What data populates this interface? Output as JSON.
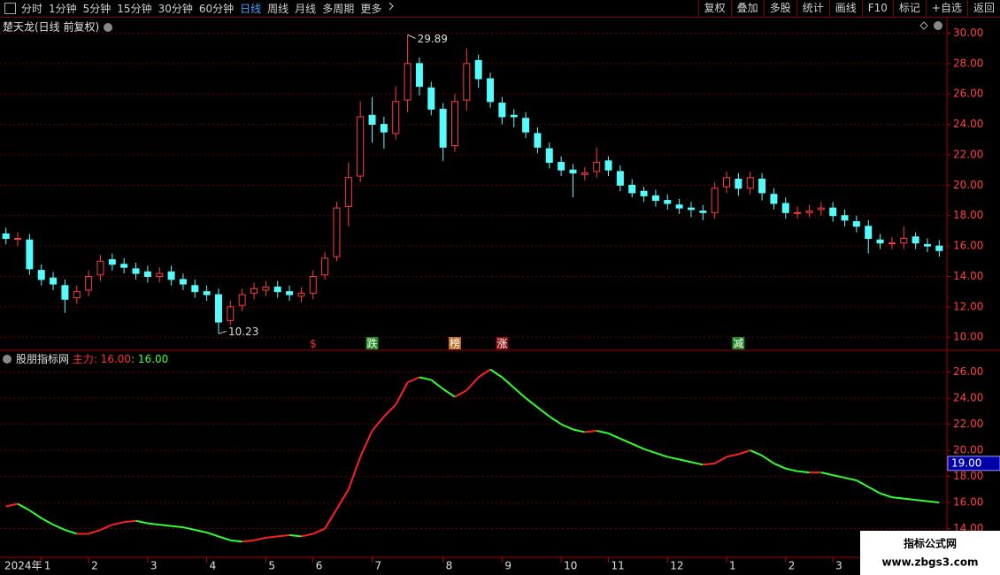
{
  "toolbar": {
    "periods": [
      "分时",
      "1分钟",
      "5分钟",
      "15分钟",
      "30分钟",
      "60分钟",
      "日线",
      "周线",
      "月线",
      "多周期",
      "更多"
    ],
    "active": "日线",
    "buttons": [
      "复权",
      "叠加",
      "多股",
      "统计",
      "画线",
      "F10",
      "标记",
      "+自选",
      "返回"
    ]
  },
  "watermark": {
    "title": "指标公式网",
    "url": "www.zbgs3.com"
  },
  "chart_data": [
    {
      "type": "candlestick",
      "title": "楚天龙(日线 前复权)",
      "up_color": "#ff3c3c",
      "down_color": "#54fcfc",
      "grid": true,
      "ylim": [
        9.2,
        30.9
      ],
      "yticks": [
        {
          "value": 10,
          "label": "10.00"
        },
        {
          "value": 12,
          "label": "12.00"
        },
        {
          "value": 14,
          "label": "14.00"
        },
        {
          "value": 16,
          "label": "16.00"
        },
        {
          "value": 18,
          "label": "18.00"
        },
        {
          "value": 20,
          "label": "20.00"
        },
        {
          "value": 22,
          "label": "22.00"
        },
        {
          "value": 24,
          "label": "24.00"
        },
        {
          "value": 26,
          "label": "26.00"
        },
        {
          "value": 28,
          "label": "28.00"
        },
        {
          "value": 30,
          "label": "30.00"
        }
      ],
      "open": [
        16.8,
        16.5,
        16.4,
        14.4,
        13.9,
        13.4,
        12.6,
        13.1,
        14.1,
        15.1,
        14.8,
        14.5,
        14.3,
        14.0,
        14.3,
        13.8,
        13.4,
        13.0,
        12.8,
        11.1,
        12.1,
        12.9,
        13.1,
        13.3,
        13.0,
        12.7,
        12.9,
        14.1,
        15.3,
        18.6,
        20.6,
        24.6,
        24.0,
        23.4,
        25.6,
        28.0,
        26.4,
        25.0,
        22.6,
        25.6,
        28.2,
        27.0,
        25.4,
        24.6,
        24.4,
        23.4,
        22.4,
        21.5,
        21.0,
        20.7,
        20.9,
        21.6,
        20.9,
        20.0,
        19.6,
        19.3,
        19.0,
        18.7,
        18.5,
        18.3,
        18.2,
        19.9,
        20.4,
        19.8,
        20.4,
        19.4,
        18.8,
        18.2,
        18.2,
        18.4,
        18.5,
        18.0,
        17.6,
        17.3,
        16.4,
        16.2,
        16.2,
        16.6,
        16.1,
        16.0
      ],
      "close": [
        16.5,
        16.5,
        14.5,
        13.8,
        13.5,
        12.5,
        13.0,
        14.0,
        15.0,
        14.8,
        14.6,
        14.2,
        14.0,
        14.2,
        13.8,
        13.5,
        13.0,
        12.8,
        11.0,
        12.0,
        12.8,
        13.2,
        13.3,
        13.0,
        12.8,
        12.9,
        14.0,
        15.2,
        18.5,
        20.5,
        24.5,
        24.0,
        23.5,
        25.5,
        28.0,
        26.5,
        25.0,
        22.5,
        25.5,
        28.0,
        27.0,
        25.5,
        24.5,
        24.5,
        23.5,
        22.5,
        21.5,
        21.0,
        20.8,
        20.8,
        21.5,
        21.0,
        20.0,
        19.5,
        19.3,
        19.0,
        18.8,
        18.5,
        18.4,
        18.2,
        19.8,
        20.5,
        19.8,
        20.5,
        19.5,
        18.8,
        18.2,
        18.2,
        18.3,
        18.5,
        18.0,
        17.7,
        17.3,
        16.5,
        16.2,
        16.2,
        16.5,
        16.2,
        16.0,
        15.7
      ],
      "high": [
        17.2,
        16.9,
        16.8,
        14.8,
        14.3,
        13.8,
        13.4,
        14.4,
        15.4,
        15.5,
        15.2,
        14.9,
        14.7,
        14.6,
        14.7,
        14.2,
        13.8,
        13.4,
        13.2,
        12.4,
        13.2,
        13.6,
        13.7,
        13.7,
        13.4,
        13.3,
        14.4,
        15.6,
        18.9,
        21.5,
        25.5,
        25.8,
        24.5,
        26.5,
        29.89,
        28.4,
        26.8,
        25.4,
        26.0,
        29.0,
        28.6,
        27.4,
        25.8,
        25.0,
        24.8,
        23.8,
        22.8,
        21.9,
        21.4,
        21.2,
        22.5,
        21.9,
        21.3,
        20.4,
        19.9,
        19.7,
        19.4,
        19.1,
        18.9,
        18.7,
        20.2,
        20.9,
        20.8,
        20.9,
        20.8,
        19.8,
        19.2,
        18.6,
        18.7,
        18.9,
        18.9,
        18.4,
        18.0,
        17.7,
        16.8,
        16.6,
        17.3,
        16.9,
        16.5,
        16.4
      ],
      "low": [
        16.1,
        16.0,
        14.1,
        13.4,
        13.1,
        11.6,
        12.2,
        12.7,
        13.7,
        14.4,
        14.2,
        13.8,
        13.6,
        13.6,
        13.4,
        13.1,
        12.6,
        12.4,
        10.23,
        10.8,
        11.7,
        12.5,
        12.7,
        12.6,
        12.4,
        12.3,
        12.5,
        13.8,
        15.0,
        17.3,
        20.2,
        22.8,
        22.4,
        23.0,
        24.8,
        25.9,
        24.6,
        21.6,
        22.2,
        24.9,
        26.4,
        25.1,
        24.0,
        23.8,
        23.1,
        22.1,
        21.1,
        20.6,
        19.2,
        20.3,
        20.5,
        20.6,
        19.6,
        19.2,
        18.9,
        18.6,
        18.4,
        18.1,
        17.9,
        17.7,
        17.8,
        19.5,
        19.3,
        19.4,
        19.0,
        18.4,
        17.8,
        17.8,
        17.9,
        18.0,
        17.6,
        17.3,
        16.9,
        15.5,
        15.8,
        15.8,
        15.8,
        15.8,
        15.6,
        15.3
      ],
      "signals": [
        null,
        null,
        null,
        null,
        null,
        null,
        null,
        null,
        null,
        null,
        null,
        null,
        null,
        null,
        null,
        null,
        null,
        null,
        null,
        null,
        null,
        null,
        null,
        null,
        null,
        null,
        {
          "label": "$",
          "color": "#ff3030",
          "background": "#000000"
        },
        null,
        null,
        null,
        null,
        {
          "label": "跌",
          "color": "#ffffff",
          "background": "#1f8a1f"
        },
        null,
        null,
        null,
        null,
        null,
        null,
        {
          "label": "榜",
          "color": "#ffffff",
          "background": "#c07020"
        },
        null,
        null,
        null,
        {
          "label": "涨",
          "color": "#ffffff",
          "background": "#8a1010"
        },
        null,
        null,
        null,
        null,
        null,
        null,
        null,
        null,
        null,
        null,
        null,
        null,
        null,
        null,
        null,
        null,
        null,
        null,
        null,
        {
          "label": "减",
          "color": "#ffffff",
          "background": "#1f8a1f"
        },
        null,
        null,
        null,
        null,
        null,
        null,
        null,
        null,
        null,
        null,
        null,
        null,
        null,
        null,
        null,
        null,
        null
      ]
    },
    {
      "type": "line",
      "indicator": "股朋指标网",
      "readout": [
        ": 16.00",
        ": 16.00"
      ],
      "readout_colors": [
        "#ff3030",
        "#40ff40"
      ],
      "grid": true,
      "up_color": "#ff2020",
      "down_color": "#30ff30",
      "ylim": [
        11.8,
        27.6
      ],
      "yticks": [
        {
          "value": 14,
          "label": "14.00"
        },
        {
          "value": 16,
          "label": "16.00"
        },
        {
          "value": 18,
          "label": "18.00"
        },
        {
          "value": 20,
          "label": "20.00"
        },
        {
          "value": 22,
          "label": "22.00"
        },
        {
          "value": 24,
          "label": "24.00"
        },
        {
          "value": 26,
          "label": "26.00"
        }
      ],
      "cursor": {
        "value": 19,
        "label": "19.00"
      },
      "categories": [
        "2024年",
        null,
        null,
        "1",
        null,
        null,
        null,
        "2",
        null,
        null,
        null,
        null,
        "3",
        null,
        null,
        null,
        null,
        "4",
        null,
        null,
        null,
        null,
        "5",
        null,
        null,
        null,
        "6",
        null,
        null,
        null,
        null,
        "7",
        null,
        null,
        null,
        null,
        null,
        "8",
        null,
        null,
        null,
        null,
        "9",
        null,
        null,
        null,
        null,
        "10",
        null,
        null,
        null,
        "11",
        null,
        null,
        null,
        null,
        "12",
        null,
        null,
        null,
        null,
        "1",
        null,
        null,
        null,
        null,
        "2",
        null,
        null,
        null,
        "3",
        null,
        null,
        null,
        null,
        null,
        null,
        null,
        null,
        null
      ],
      "series": [
        {
          "name": "主力",
          "values": [
            15.7,
            15.9,
            15.4,
            14.8,
            14.3,
            13.9,
            13.6,
            13.6,
            13.9,
            14.3,
            14.5,
            14.6,
            14.4,
            14.3,
            14.2,
            14.1,
            13.9,
            13.7,
            13.4,
            13.1,
            13.0,
            13.1,
            13.3,
            13.4,
            13.5,
            13.4,
            13.6,
            14.0,
            15.5,
            17.0,
            19.5,
            21.5,
            22.6,
            23.5,
            25.2,
            25.6,
            25.4,
            24.7,
            24.1,
            24.6,
            25.6,
            26.2,
            25.6,
            24.8,
            24.0,
            23.3,
            22.6,
            22.0,
            21.6,
            21.4,
            21.5,
            21.3,
            20.9,
            20.5,
            20.1,
            19.8,
            19.5,
            19.3,
            19.1,
            18.9,
            19.0,
            19.5,
            19.7,
            20.0,
            19.6,
            19.0,
            18.6,
            18.4,
            18.3,
            18.3,
            18.1,
            17.9,
            17.7,
            17.2,
            16.7,
            16.4,
            16.3,
            16.2,
            16.1,
            16.0
          ]
        }
      ]
    }
  ]
}
